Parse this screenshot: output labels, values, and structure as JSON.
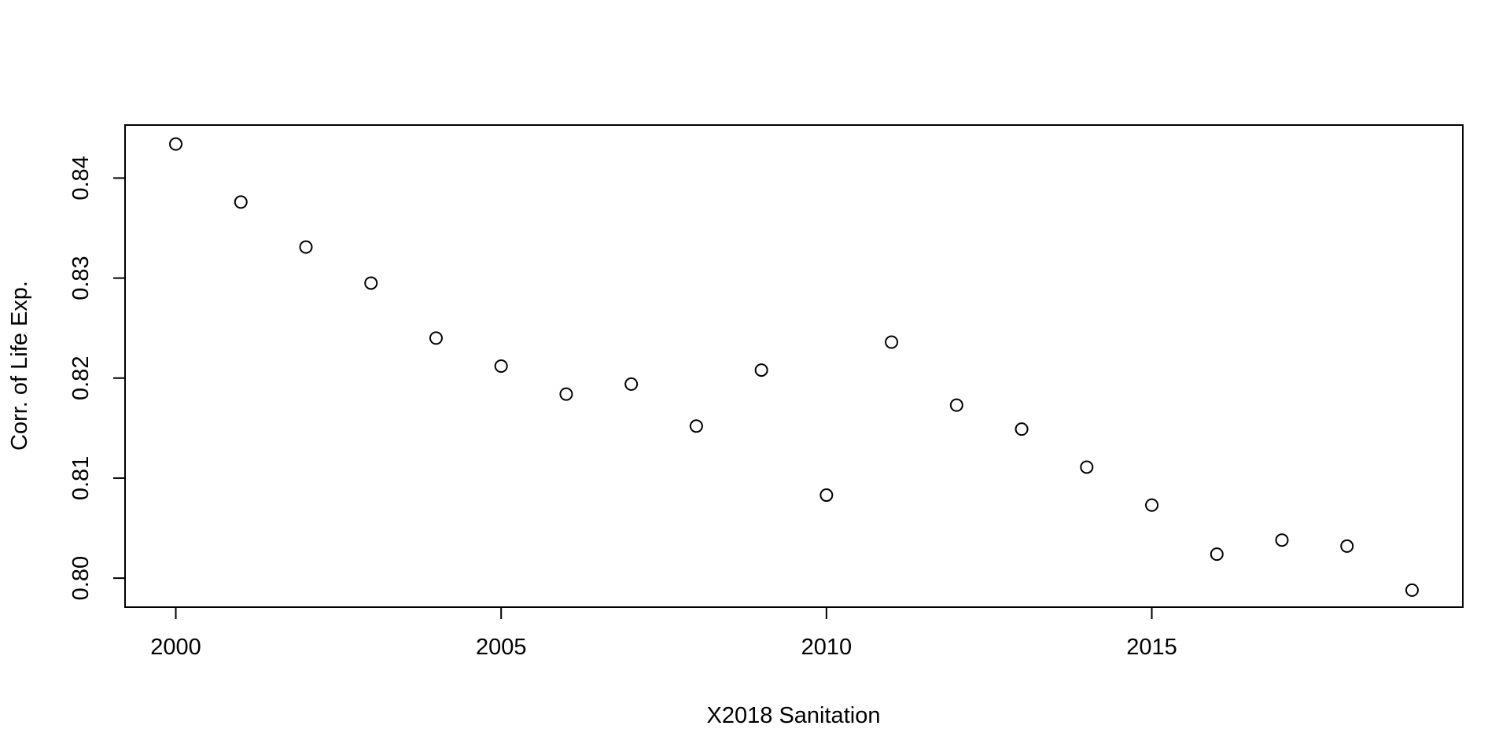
{
  "chart_data": {
    "type": "scatter",
    "title": "",
    "xlabel": "X2018 Sanitation",
    "ylabel": "Corr. of Life Exp.",
    "xlim": [
      1999.22,
      2019.78
    ],
    "ylim": [
      0.7971,
      0.8453
    ],
    "x_ticks": [
      2000,
      2005,
      2010,
      2015
    ],
    "x_tick_labels": [
      "2000",
      "2005",
      "2010",
      "2015"
    ],
    "y_ticks": [
      0.8,
      0.81,
      0.82,
      0.83,
      0.84
    ],
    "y_tick_labels": [
      "0.80",
      "0.81",
      "0.82",
      "0.83",
      "0.84"
    ],
    "grid": false,
    "legend": "none",
    "marker": "open-circle",
    "color": "#000000",
    "points": [
      {
        "x": 2000,
        "y": 0.8434
      },
      {
        "x": 2001,
        "y": 0.8376
      },
      {
        "x": 2002,
        "y": 0.8331
      },
      {
        "x": 2003,
        "y": 0.8295
      },
      {
        "x": 2004,
        "y": 0.824
      },
      {
        "x": 2005,
        "y": 0.8212
      },
      {
        "x": 2006,
        "y": 0.8184
      },
      {
        "x": 2007,
        "y": 0.8194
      },
      {
        "x": 2008,
        "y": 0.8152
      },
      {
        "x": 2009,
        "y": 0.8208
      },
      {
        "x": 2010,
        "y": 0.8083
      },
      {
        "x": 2011,
        "y": 0.8236
      },
      {
        "x": 2012,
        "y": 0.8173
      },
      {
        "x": 2013,
        "y": 0.8149
      },
      {
        "x": 2014,
        "y": 0.8111
      },
      {
        "x": 2015,
        "y": 0.8073
      },
      {
        "x": 2016,
        "y": 0.8024
      },
      {
        "x": 2017,
        "y": 0.8038
      },
      {
        "x": 2018,
        "y": 0.8032
      },
      {
        "x": 2019,
        "y": 0.7988
      }
    ]
  }
}
